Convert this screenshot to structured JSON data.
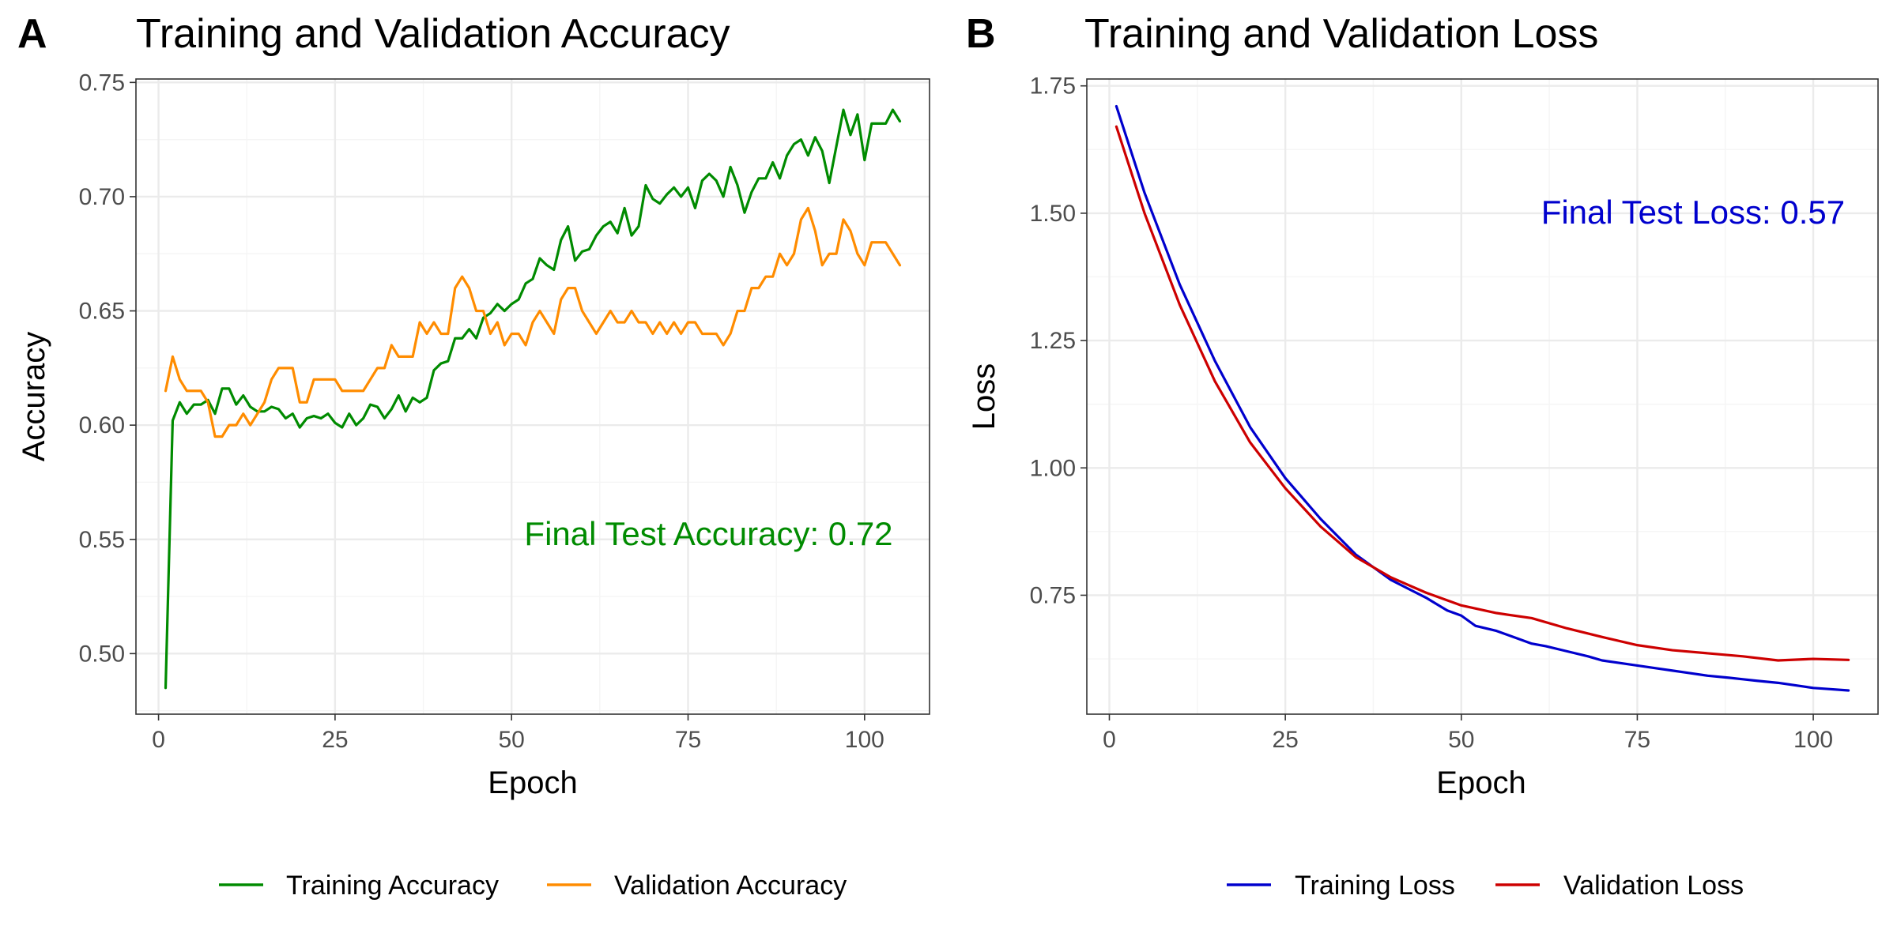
{
  "chart_data": [
    {
      "type": "line",
      "panel_tag": "A",
      "title": "Training and Validation Accuracy",
      "xlabel": "Epoch",
      "ylabel": "Accuracy",
      "xlim": [
        -3.2,
        109.2
      ],
      "ylim": [
        0.4735,
        0.7515
      ],
      "x_ticks": [
        0,
        25,
        50,
        75,
        100
      ],
      "x_tick_labels": [
        "0",
        "25",
        "50",
        "75",
        "100"
      ],
      "y_ticks": [
        0.5,
        0.55,
        0.6,
        0.65,
        0.7,
        0.75
      ],
      "y_tick_labels": [
        "0.50",
        "0.55",
        "0.60",
        "0.65",
        "0.70",
        "0.75"
      ],
      "grid": true,
      "legend_position": "bottom",
      "annotation": {
        "text": "Final Test Accuracy: 0.72",
        "x": 104,
        "y": 0.5475,
        "anchor": "end",
        "color": "#008b00"
      },
      "series": [
        {
          "name": "Training Accuracy",
          "color": "#008b00",
          "x_start": 1,
          "values": [
            0.485,
            0.602,
            0.61,
            0.605,
            0.609,
            0.609,
            0.611,
            0.605,
            0.616,
            0.616,
            0.609,
            0.613,
            0.608,
            0.606,
            0.606,
            0.608,
            0.607,
            0.603,
            0.605,
            0.599,
            0.603,
            0.604,
            0.603,
            0.605,
            0.601,
            0.599,
            0.605,
            0.6,
            0.603,
            0.609,
            0.608,
            0.603,
            0.607,
            0.613,
            0.606,
            0.612,
            0.61,
            0.612,
            0.624,
            0.627,
            0.628,
            0.638,
            0.638,
            0.642,
            0.638,
            0.647,
            0.649,
            0.653,
            0.65,
            0.653,
            0.655,
            0.662,
            0.664,
            0.673,
            0.67,
            0.668,
            0.681,
            0.687,
            0.672,
            0.676,
            0.677,
            0.683,
            0.687,
            0.689,
            0.684,
            0.695,
            0.683,
            0.687,
            0.705,
            0.699,
            0.697,
            0.701,
            0.704,
            0.7,
            0.704,
            0.695,
            0.707,
            0.71,
            0.707,
            0.7,
            0.713,
            0.705,
            0.693,
            0.702,
            0.708,
            0.708,
            0.715,
            0.708,
            0.718,
            0.723,
            0.725,
            0.718,
            0.726,
            0.72,
            0.706,
            0.722,
            0.738,
            0.727,
            0.736,
            0.716,
            0.732,
            0.732,
            0.732,
            0.738,
            0.733
          ]
        },
        {
          "name": "Validation Accuracy",
          "color": "#ff8c00",
          "x_start": 1,
          "values": [
            0.615,
            0.63,
            0.62,
            0.615,
            0.615,
            0.615,
            0.61,
            0.595,
            0.595,
            0.6,
            0.6,
            0.605,
            0.6,
            0.605,
            0.61,
            0.62,
            0.625,
            0.625,
            0.625,
            0.61,
            0.61,
            0.62,
            0.62,
            0.62,
            0.62,
            0.615,
            0.615,
            0.615,
            0.615,
            0.62,
            0.625,
            0.625,
            0.635,
            0.63,
            0.63,
            0.63,
            0.645,
            0.64,
            0.645,
            0.64,
            0.64,
            0.66,
            0.665,
            0.66,
            0.65,
            0.65,
            0.64,
            0.645,
            0.635,
            0.64,
            0.64,
            0.635,
            0.645,
            0.65,
            0.645,
            0.64,
            0.655,
            0.66,
            0.66,
            0.65,
            0.645,
            0.64,
            0.645,
            0.65,
            0.645,
            0.645,
            0.65,
            0.645,
            0.645,
            0.64,
            0.645,
            0.64,
            0.645,
            0.64,
            0.645,
            0.645,
            0.64,
            0.64,
            0.64,
            0.635,
            0.64,
            0.65,
            0.65,
            0.66,
            0.66,
            0.665,
            0.665,
            0.675,
            0.67,
            0.675,
            0.69,
            0.695,
            0.685,
            0.67,
            0.675,
            0.675,
            0.69,
            0.685,
            0.675,
            0.67,
            0.68,
            0.68,
            0.68,
            0.675,
            0.67
          ]
        }
      ]
    },
    {
      "type": "line",
      "panel_tag": "B",
      "title": "Training and Validation Loss",
      "xlabel": "Epoch",
      "ylabel": "Loss",
      "xlim": [
        -3.2,
        109.2
      ],
      "ylim": [
        0.5165,
        1.7635
      ],
      "x_ticks": [
        0,
        25,
        50,
        75,
        100
      ],
      "x_tick_labels": [
        "0",
        "25",
        "50",
        "75",
        "100"
      ],
      "y_ticks": [
        0.75,
        1.0,
        1.25,
        1.5,
        1.75
      ],
      "y_tick_labels": [
        "0.75",
        "1.00",
        "1.25",
        "1.50",
        "1.75"
      ],
      "grid": true,
      "legend_position": "bottom",
      "annotation": {
        "text": "Final Test Loss: 0.57",
        "x": 104.5,
        "y": 1.48,
        "anchor": "end",
        "color": "#0000cd"
      },
      "series": [
        {
          "name": "Training Loss",
          "color": "#0000cd",
          "x": [
            1,
            5,
            10,
            15,
            20,
            25,
            30,
            35,
            40,
            45,
            48,
            50,
            52,
            55,
            58,
            60,
            62,
            65,
            68,
            70,
            72,
            75,
            78,
            80,
            82,
            85,
            88,
            90,
            92,
            95,
            98,
            100,
            102,
            105
          ],
          "values": [
            1.71,
            1.54,
            1.36,
            1.21,
            1.08,
            0.98,
            0.9,
            0.83,
            0.78,
            0.745,
            0.72,
            0.71,
            0.69,
            0.68,
            0.665,
            0.655,
            0.65,
            0.64,
            0.63,
            0.622,
            0.618,
            0.612,
            0.606,
            0.602,
            0.598,
            0.592,
            0.588,
            0.585,
            0.582,
            0.578,
            0.572,
            0.568,
            0.566,
            0.563
          ]
        },
        {
          "name": "Validation Loss",
          "color": "#cd0000",
          "x": [
            1,
            5,
            10,
            15,
            20,
            25,
            30,
            35,
            40,
            45,
            50,
            55,
            60,
            65,
            70,
            75,
            80,
            85,
            90,
            95,
            100,
            105
          ],
          "values": [
            1.67,
            1.5,
            1.32,
            1.17,
            1.05,
            0.96,
            0.885,
            0.825,
            0.785,
            0.755,
            0.73,
            0.715,
            0.705,
            0.685,
            0.668,
            0.652,
            0.642,
            0.636,
            0.63,
            0.622,
            0.625,
            0.623
          ]
        }
      ]
    }
  ]
}
